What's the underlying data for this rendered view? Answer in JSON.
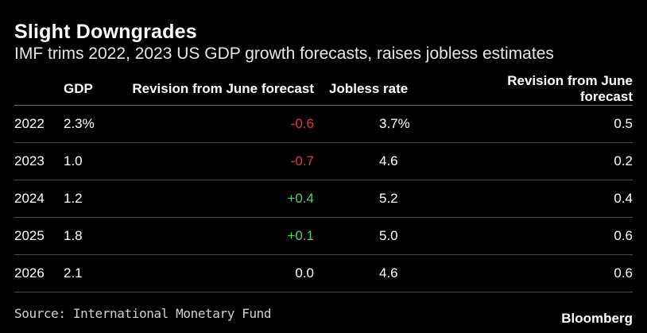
{
  "chart_data": {
    "type": "table",
    "title": "Slight Downgrades",
    "subtitle": "IMF trims 2022, 2023 US GDP growth forecasts, raises jobless estimates",
    "columns": [
      "",
      "GDP",
      "Revision from June forecast",
      "Jobless rate",
      "Revision from June forecast"
    ],
    "rows": [
      {
        "year": "2022",
        "gdp": "2.3%",
        "gdp_revision": "-0.6",
        "gdp_revision_sign": "neg",
        "jobless": "3.7%",
        "jobless_revision": "0.5"
      },
      {
        "year": "2023",
        "gdp": "1.0",
        "gdp_revision": "-0.7",
        "gdp_revision_sign": "neg",
        "jobless": "4.6",
        "jobless_revision": "0.2"
      },
      {
        "year": "2024",
        "gdp": "1.2",
        "gdp_revision": "+0.4",
        "gdp_revision_sign": "pos",
        "jobless": "5.2",
        "jobless_revision": "0.4"
      },
      {
        "year": "2025",
        "gdp": "1.8",
        "gdp_revision": "+0.1",
        "gdp_revision_sign": "pos",
        "jobless": "5.0",
        "jobless_revision": "0.6"
      },
      {
        "year": "2026",
        "gdp": "2.1",
        "gdp_revision": "0.0",
        "gdp_revision_sign": "zero",
        "jobless": "4.6",
        "jobless_revision": "0.6"
      }
    ],
    "source": "Source: International Monetary Fund",
    "brand": "Bloomberg",
    "colors": {
      "background": "#000000",
      "text": "#ffffff",
      "negative": "#e8303a",
      "positive": "#4fd06a"
    }
  }
}
